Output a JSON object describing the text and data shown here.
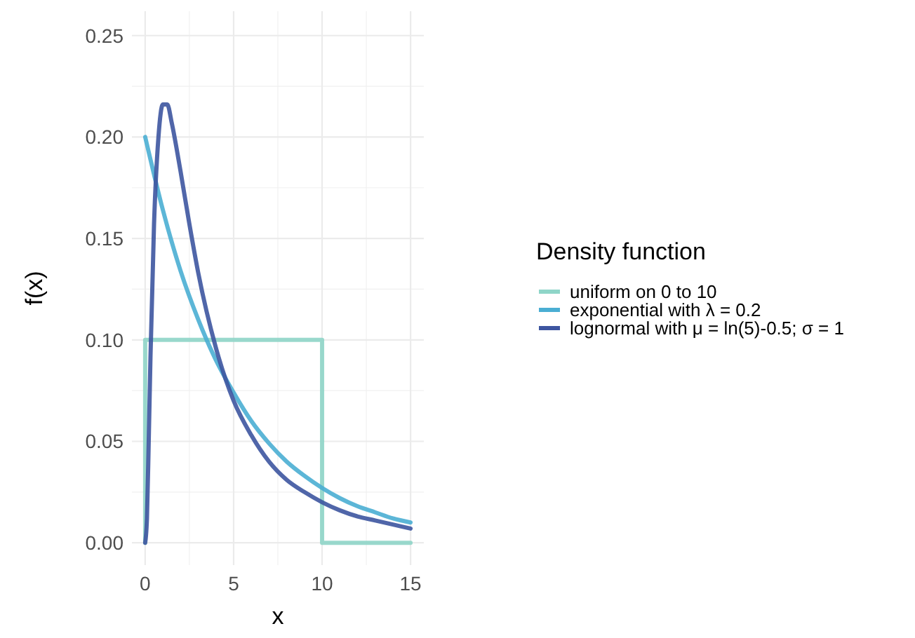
{
  "chart_data": {
    "type": "line",
    "xlabel": "x",
    "ylabel": "f(x)",
    "legend_title": "Density function",
    "legend": "right",
    "grid": true,
    "line_style": "solid",
    "xlim": [
      -0.75,
      15.75
    ],
    "xticks": [
      0,
      5,
      10,
      15
    ],
    "ylim": [
      -0.011,
      0.262
    ],
    "yticks": [
      {
        "value": 0,
        "label": "0.00"
      },
      {
        "value": 0.05,
        "label": "0.05"
      },
      {
        "value": 0.1,
        "label": "0.10"
      },
      {
        "value": 0.15,
        "label": "0.15"
      },
      {
        "value": 0.2,
        "label": "0.20"
      },
      {
        "value": 0.25,
        "label": "0.25"
      }
    ],
    "series": [
      {
        "name": "uniform on 0 to 10",
        "color": "#8fd5c8",
        "x": [
          0,
          0,
          10,
          10,
          15
        ],
        "values": [
          0,
          0.1,
          0.1,
          0,
          0
        ]
      },
      {
        "name": "exponential with λ = 0.2",
        "color": "#4aaed3",
        "x": [
          0,
          1,
          2,
          3,
          4,
          5,
          6,
          7,
          8,
          9,
          10,
          11,
          12,
          13,
          14,
          15
        ],
        "values": [
          0.2,
          0.164,
          0.134,
          0.11,
          0.09,
          0.074,
          0.06,
          0.049,
          0.04,
          0.033,
          0.027,
          0.022,
          0.018,
          0.015,
          0.012,
          0.01
        ]
      },
      {
        "name": "lognormal with μ = ln(5)-0.5; σ = 1",
        "color": "#3d55a0",
        "x": [
          0,
          0.1,
          0.2,
          0.3,
          0.5,
          0.75,
          1,
          1.25,
          1.5,
          2,
          2.5,
          3,
          4,
          5,
          6,
          7,
          8,
          9,
          10,
          11,
          12,
          13,
          14,
          15
        ],
        "values": [
          0,
          0.012,
          0.05,
          0.092,
          0.157,
          0.2,
          0.216,
          0.216,
          0.207,
          0.183,
          0.157,
          0.133,
          0.096,
          0.07,
          0.053,
          0.04,
          0.031,
          0.025,
          0.02,
          0.016,
          0.013,
          0.011,
          0.009,
          0.007
        ]
      }
    ]
  }
}
